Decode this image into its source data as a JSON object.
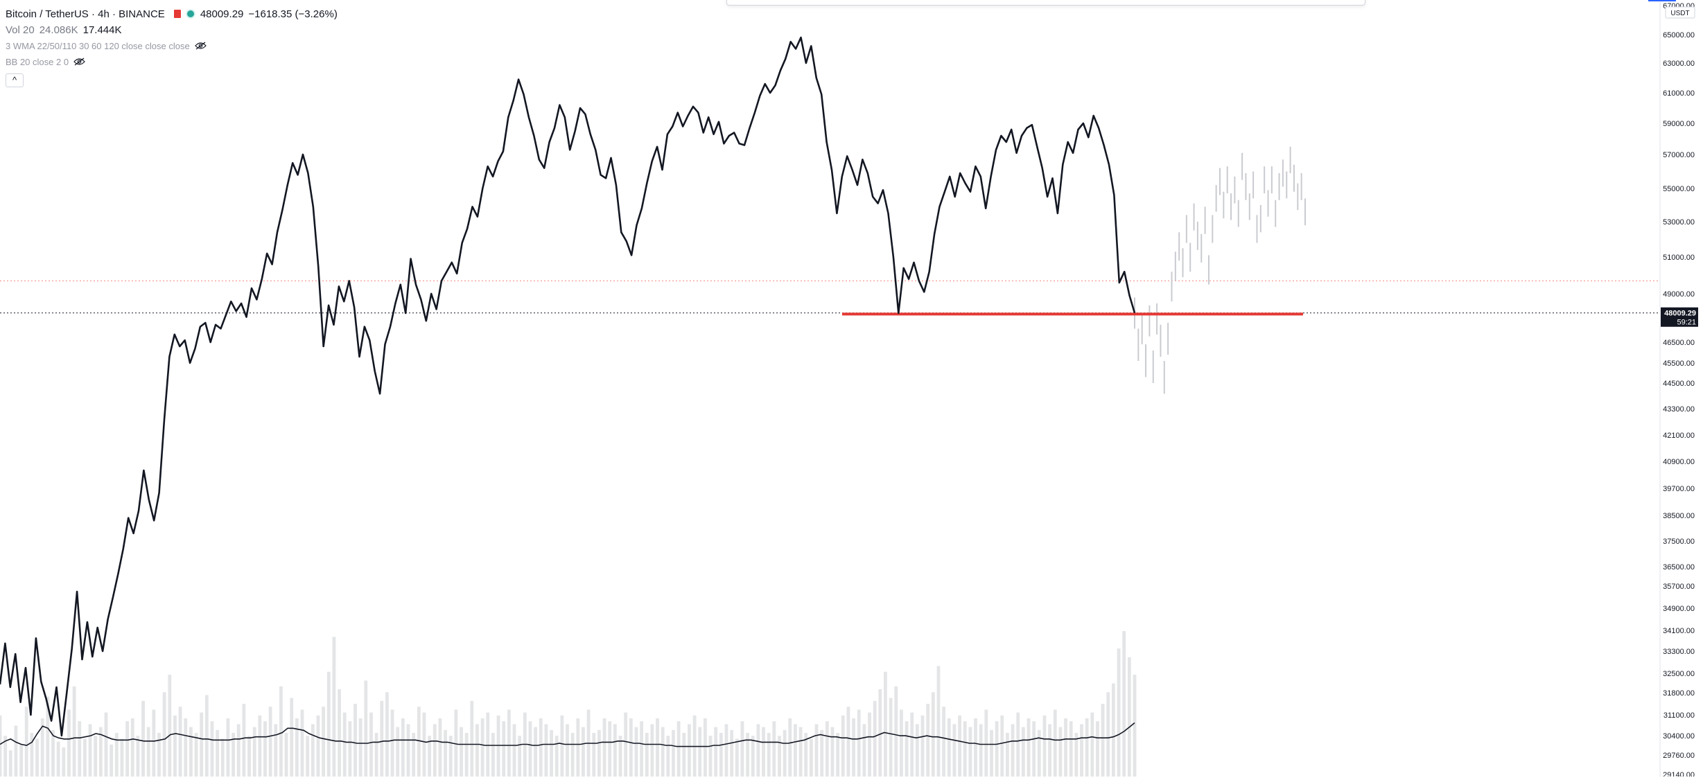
{
  "legend": {
    "symbol": "Bitcoin / TetherUS · 4h · BINANCE",
    "price": "48009.29",
    "change": "−1618.35 (−3.26%)",
    "vol_label": "Vol 20",
    "vol_value_1": "24.086K",
    "vol_value_2": "17.444K",
    "wma_label": "3 WMA 22/50/110 30 60 120 close close close",
    "bb_label": "BB 20 close 2 0",
    "collapse_symbol": "^"
  },
  "currency_badge": "USDT",
  "colors": {
    "price_line": "#131722",
    "ghost_line": "#c9cbd0",
    "support_line": "#e53935",
    "dotted_red": "#f28b82",
    "current_price_tag_bg": "#131722",
    "current_price_tag_text": "#ffffff",
    "volume_bars": "#e4e5e7",
    "axis_text": "#131722",
    "flag": "#e53935",
    "dot": "#26a69a"
  },
  "chart_data": {
    "type": "line",
    "title": "Bitcoin / TetherUS · 4h · BINANCE",
    "y_axis_labels": [
      "67000.00",
      "65000.00",
      "63000.00",
      "61000.00",
      "59000.00",
      "57000.00",
      "55000.00",
      "53000.00",
      "51000.00",
      "49000.00",
      "46500.00",
      "45500.00",
      "44500.00",
      "43300.00",
      "42100.00",
      "40900.00",
      "39700.00",
      "38500.00",
      "37500.00",
      "36500.00",
      "35700.00",
      "34900.00",
      "34100.00",
      "33300.00",
      "32500.00",
      "31800.00",
      "31100.00",
      "30400.00",
      "29760.00",
      "29140.00"
    ],
    "y_axis_values": [
      67000,
      65000,
      63000,
      61000,
      59000,
      57000,
      55000,
      53000,
      51000,
      49000,
      46500,
      45500,
      44500,
      43300,
      42100,
      40900,
      39700,
      38500,
      37500,
      36500,
      35700,
      34900,
      34100,
      33300,
      32500,
      31800,
      31100,
      30400,
      29760,
      29140
    ],
    "current_price": 48009.29,
    "current_price_label": "48009.29",
    "countdown_label": "59:21",
    "support_level": 47950,
    "dotted_red_level": 49700,
    "series": [
      {
        "values": [
          32100,
          33600,
          32000,
          33200,
          31500,
          32700,
          31100,
          33800,
          32200,
          31600,
          30900,
          32000,
          30400,
          31800,
          33400,
          35500,
          33000,
          34400,
          33100,
          34200,
          33300,
          34500,
          35300,
          36200,
          37200,
          38400,
          37800,
          38700,
          40500,
          39200,
          38300,
          39500,
          42800,
          45800,
          46900,
          46300,
          46600,
          45500,
          46200,
          47300,
          47500,
          46500,
          47400,
          47200,
          47900,
          48600,
          48100,
          48500,
          47800,
          49300,
          48700,
          49800,
          51200,
          50600,
          52400,
          53700,
          55200,
          56500,
          55800,
          57000,
          55900,
          53900,
          50500,
          46300,
          48400,
          47400,
          49400,
          48600,
          49700,
          48300,
          45800,
          47300,
          46600,
          45100,
          44000,
          46400,
          47300,
          48500,
          49500,
          48000,
          50900,
          49500,
          48700,
          47600,
          49000,
          48200,
          49700,
          50200,
          50700,
          50100,
          51800,
          52600,
          53900,
          53300,
          55000,
          56300,
          55700,
          56600,
          57200,
          59400,
          60500,
          61900,
          60900,
          59400,
          58200,
          56700,
          56200,
          57800,
          58700,
          60200,
          59400,
          57300,
          58500,
          60000,
          59600,
          58300,
          57300,
          55800,
          55600,
          56800,
          55200,
          52400,
          51900,
          51100,
          52800,
          53800,
          55300,
          56600,
          57500,
          56100,
          58300,
          58800,
          59700,
          58800,
          59500,
          60100,
          59700,
          58400,
          59400,
          58300,
          59100,
          57700,
          58200,
          58400,
          57700,
          57600,
          58700,
          59700,
          60800,
          61600,
          61000,
          61500,
          62500,
          63300,
          64500,
          64000,
          64800,
          63000,
          64200,
          62000,
          60900,
          57800,
          56100,
          53500,
          55700,
          56900,
          56100,
          55200,
          56700,
          55900,
          54500,
          54100,
          54900,
          53500,
          51000,
          48000,
          50400,
          49800,
          50700,
          49700,
          49100,
          50200,
          52300,
          53900,
          54800,
          55700,
          54500,
          55900,
          55300,
          54800,
          56300,
          55700,
          53800,
          55700,
          57300,
          58200,
          57800,
          58600,
          57100,
          58200,
          58700,
          58900,
          57500,
          56200,
          54500,
          55600,
          53500,
          56400,
          57800,
          57100,
          58600,
          59000,
          58100,
          59500,
          58700,
          57600,
          56400,
          54600,
          49600,
          50200,
          48900,
          48009
        ],
        "color": "#131722"
      }
    ],
    "projection_series": {
      "values": [
        48100,
        46500,
        47300,
        45700,
        47700,
        45400,
        47800,
        46700,
        44900,
        46800,
        49500,
        50600,
        51700,
        50800,
        52700,
        51100,
        53400,
        52300,
        51600,
        53200,
        50400,
        52700,
        54500,
        55500,
        54100,
        55600,
        54000,
        55000,
        53600,
        56400,
        55200,
        54000,
        55300,
        52700,
        53300,
        55600,
        54200,
        55600,
        53600,
        55200,
        56000,
        55300,
        56800,
        55700,
        54600,
        55200,
        53700
      ],
      "color": "#c9cbd0"
    },
    "volume_values": [
      42,
      28,
      18,
      35,
      22,
      48,
      30,
      26,
      40,
      55,
      32,
      24,
      20,
      46,
      62,
      38,
      26,
      36,
      28,
      34,
      44,
      22,
      30,
      26,
      38,
      40,
      28,
      52,
      34,
      46,
      30,
      58,
      70,
      42,
      48,
      40,
      34,
      30,
      44,
      56,
      38,
      32,
      26,
      40,
      30,
      36,
      50,
      28,
      34,
      42,
      38,
      48,
      36,
      62,
      30,
      54,
      40,
      46,
      28,
      36,
      42,
      48,
      72,
      96,
      60,
      44,
      38,
      50,
      40,
      66,
      44,
      30,
      52,
      58,
      46,
      34,
      40,
      36,
      30,
      48,
      44,
      28,
      36,
      40,
      32,
      28,
      46,
      34,
      30,
      52,
      36,
      40,
      44,
      30,
      42,
      38,
      46,
      36,
      28,
      44,
      38,
      34,
      40,
      36,
      32,
      28,
      42,
      36,
      30,
      40,
      34,
      46,
      30,
      32,
      40,
      38,
      36,
      28,
      44,
      40,
      34,
      38,
      30,
      36,
      40,
      34,
      28,
      32,
      38,
      30,
      36,
      42,
      34,
      40,
      28,
      34,
      30,
      36,
      32,
      26,
      38,
      30,
      28,
      36,
      34,
      30,
      38,
      28,
      32,
      40,
      36,
      34,
      30,
      26,
      36,
      32,
      38,
      34,
      30,
      42,
      48,
      40,
      46,
      36,
      44,
      52,
      60,
      72,
      54,
      62,
      46,
      38,
      44,
      36,
      42,
      50,
      58,
      76,
      48,
      40,
      36,
      42,
      38,
      34,
      40,
      36,
      46,
      32,
      38,
      42,
      30,
      36,
      44,
      34,
      40,
      38,
      32,
      42,
      36,
      46,
      34,
      40,
      38,
      30,
      36,
      40,
      44,
      38,
      50,
      58,
      64,
      88,
      100,
      82,
      70
    ],
    "volume_ma_values": [
      10,
      13,
      15,
      12,
      10,
      9,
      12,
      20,
      27,
      25,
      18,
      16,
      15,
      15,
      16,
      16,
      17,
      18,
      20,
      19,
      17,
      15,
      14,
      14,
      14,
      15,
      14,
      13,
      13,
      13,
      14,
      15,
      19,
      20,
      19,
      18,
      17,
      16,
      15,
      15,
      14,
      14,
      14,
      14,
      15,
      15,
      16,
      16,
      17,
      17,
      17,
      18,
      19,
      21,
      25,
      25,
      24,
      23,
      20,
      18,
      16,
      15,
      14,
      13,
      13,
      12,
      12,
      11,
      11,
      11,
      12,
      12,
      13,
      13,
      14,
      14,
      14,
      14,
      14,
      13,
      12,
      13,
      13,
      12,
      12,
      11,
      10,
      10,
      10,
      10,
      10,
      9,
      9,
      9,
      9,
      9,
      9,
      9,
      10,
      10,
      9,
      9,
      10,
      10,
      10,
      11,
      10,
      10,
      10,
      10,
      11,
      11,
      11,
      12,
      12,
      12,
      13,
      13,
      12,
      11,
      11,
      10,
      10,
      10,
      10,
      9,
      9,
      8,
      8,
      8,
      8,
      8,
      8,
      8,
      9,
      9,
      10,
      11,
      12,
      13,
      14,
      14,
      13,
      12,
      12,
      12,
      12,
      11,
      11,
      12,
      13,
      14,
      16,
      18,
      19,
      18,
      17,
      17,
      16,
      16,
      15,
      15,
      16,
      17,
      17,
      19,
      21,
      20,
      19,
      18,
      18,
      17,
      16,
      17,
      18,
      17,
      17,
      16,
      15,
      14,
      13,
      12,
      11,
      11,
      10,
      10,
      10,
      10,
      11,
      12,
      13,
      13,
      14,
      14,
      15,
      16,
      15,
      15,
      14,
      14,
      15,
      15,
      15,
      16,
      16,
      17,
      16,
      16,
      16,
      17,
      19,
      22,
      26,
      30
    ]
  }
}
